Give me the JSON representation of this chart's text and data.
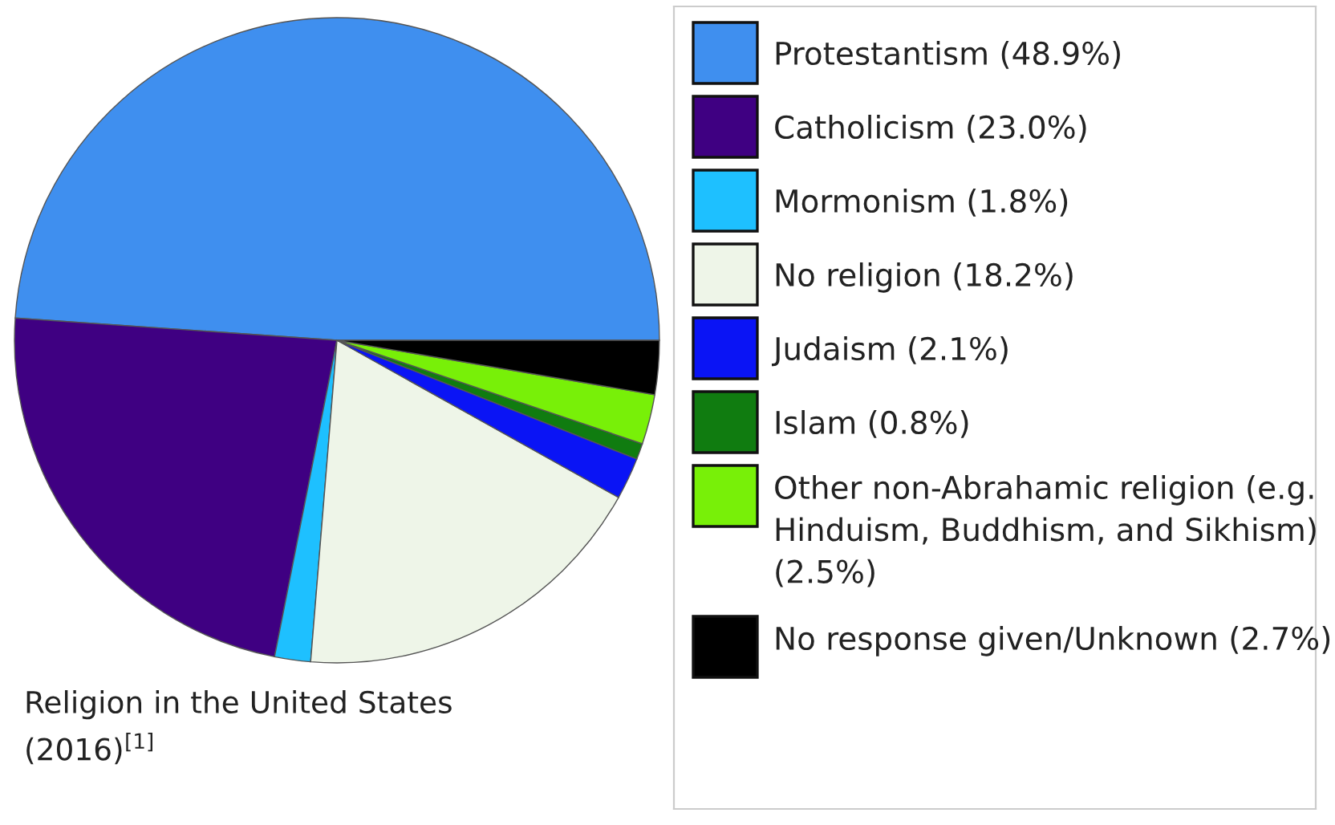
{
  "chart_data": {
    "type": "pie",
    "title": "Religion in the United States\n(2016)$^{[1]}$",
    "categories": [
      "Protestantism (48.9%)",
      "Catholicism (23.0%)",
      "Mormonism (1.8%)",
      "No religion (18.2%)",
      "Judaism (2.1%)",
      "Islam (0.8%)",
      "Other non-Abrahamic religion (e.g. Hinduism, Buddhism, and Sikhism) (2.5%)",
      "No response given/Unknown (2.7%)"
    ],
    "values": [
      48.9,
      23.0,
      1.8,
      18.2,
      2.1,
      0.8,
      2.5,
      2.7
    ],
    "colors": [
      "#3f8fef",
      "#3f0082",
      "#1ec0ff",
      "#eef5e8",
      "#0a14f5",
      "#107c10",
      "#78f008",
      "#000000"
    ],
    "legend": "right"
  }
}
